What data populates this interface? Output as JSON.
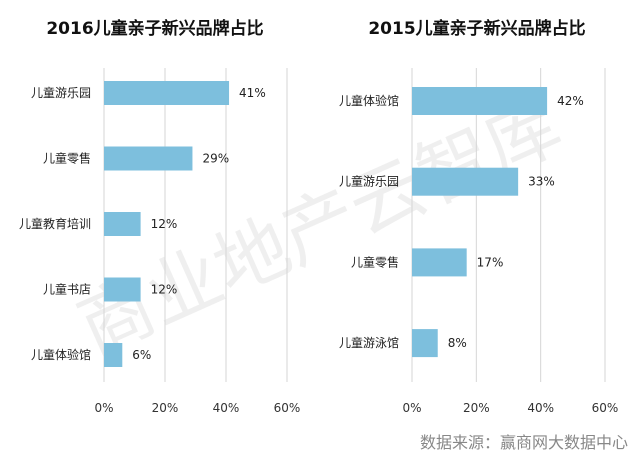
{
  "chart_data": [
    {
      "type": "bar",
      "orientation": "horizontal",
      "title": "2016儿童亲子新兴品牌占比",
      "categories": [
        "儿童游乐园",
        "儿童零售",
        "儿童教育培训",
        "儿童书店",
        "儿童体验馆"
      ],
      "values": [
        41,
        29,
        12,
        12,
        6
      ],
      "value_labels": [
        "41%",
        "29%",
        "12%",
        "12%",
        "6%"
      ],
      "xlim": [
        0,
        60
      ],
      "ticks": [
        0,
        20,
        40,
        60
      ],
      "tick_labels": [
        "0%",
        "20%",
        "40%",
        "60%"
      ],
      "grid": true,
      "bar_color": "#7dbfdd"
    },
    {
      "type": "bar",
      "orientation": "horizontal",
      "title": "2015儿童亲子新兴品牌占比",
      "categories": [
        "儿童体验馆",
        "儿童游乐园",
        "儿童零售",
        "儿童游泳馆"
      ],
      "values": [
        42,
        33,
        17,
        8
      ],
      "value_labels": [
        "42%",
        "33%",
        "17%",
        "8%"
      ],
      "xlim": [
        0,
        60
      ],
      "ticks": [
        0,
        20,
        40,
        60
      ],
      "tick_labels": [
        "0%",
        "20%",
        "40%",
        "60%"
      ],
      "grid": true,
      "bar_color": "#7dbfdd"
    }
  ],
  "watermark": "商业地产云智库",
  "source": "数据来源：赢商网大数据中心"
}
